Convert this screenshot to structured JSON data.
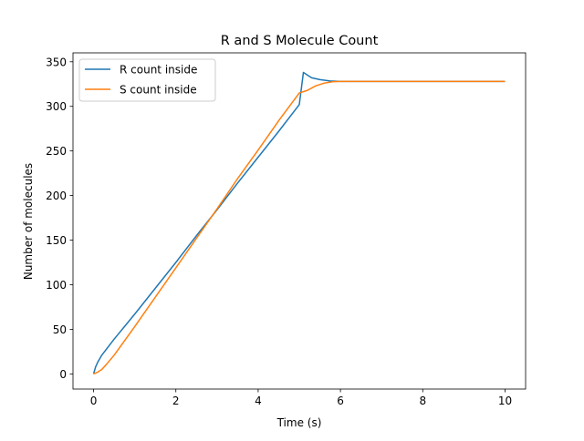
{
  "chart_data": {
    "type": "line",
    "title": "R and S Molecule Count",
    "xlabel": "Time (s)",
    "ylabel": "Number of molecules",
    "xlim": [
      -0.5,
      10.5
    ],
    "ylim": [
      -17,
      360
    ],
    "xticks": [
      0,
      2,
      4,
      6,
      8,
      10
    ],
    "xtick_labels": [
      "0",
      "2",
      "4",
      "6",
      "8",
      "10"
    ],
    "yticks": [
      0,
      50,
      100,
      150,
      200,
      250,
      300,
      350
    ],
    "ytick_labels": [
      "0",
      "50",
      "100",
      "150",
      "200",
      "250",
      "300",
      "350"
    ],
    "grid": false,
    "legend_position": "top-left",
    "series": [
      {
        "name": "R count inside",
        "color": "#1f77b4",
        "x": [
          0,
          0.05,
          0.1,
          0.2,
          0.3,
          0.5,
          0.75,
          1.0,
          1.5,
          2.0,
          2.5,
          3.0,
          3.5,
          4.0,
          4.5,
          5.0,
          5.1,
          5.2,
          5.3,
          5.5,
          5.75,
          6.0,
          6.5,
          7.0,
          8.0,
          9.0,
          10.0
        ],
        "y": [
          0,
          8,
          13,
          21,
          27,
          39,
          53,
          67,
          96,
          125,
          155,
          184,
          214,
          243,
          272,
          302,
          338,
          335,
          332,
          330,
          328.5,
          328,
          328,
          328,
          328,
          328,
          328
        ]
      },
      {
        "name": "S count inside",
        "color": "#ff7f0e",
        "x": [
          0,
          0.1,
          0.2,
          0.3,
          0.5,
          0.75,
          1.0,
          1.5,
          2.0,
          2.5,
          3.0,
          3.5,
          4.0,
          4.5,
          5.0,
          5.2,
          5.4,
          5.6,
          5.8,
          6.0,
          6.5,
          7.0,
          8.0,
          9.0,
          10.0
        ],
        "y": [
          0,
          2,
          5,
          10,
          21,
          37,
          53,
          86,
          119,
          152,
          185,
          219,
          251,
          284,
          315,
          318,
          323,
          326,
          327.5,
          328,
          328,
          328,
          328,
          328,
          328
        ]
      }
    ]
  }
}
